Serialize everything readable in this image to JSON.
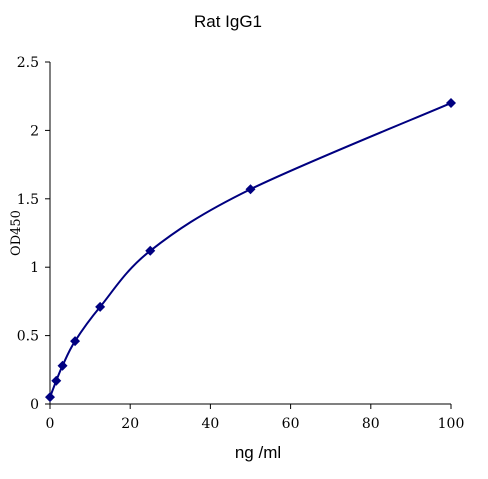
{
  "chart_data": {
    "type": "scatter",
    "title": "Rat   IgG1",
    "xlabel": "ng /ml",
    "ylabel": "OD450",
    "xlim": [
      0,
      100
    ],
    "ylim": [
      0,
      2.5
    ],
    "x_ticks": [
      "0",
      "20",
      "40",
      "60",
      "80",
      "100"
    ],
    "y_ticks": [
      "0",
      "0.5",
      "1",
      "1.5",
      "2",
      "2.5"
    ],
    "grid": false,
    "legend": "none",
    "marker": "diamond",
    "smooth_curve": true,
    "color": "#000080",
    "series": [
      {
        "x": [
          0,
          1.5625,
          3.125,
          6.25,
          12.5,
          25,
          50,
          100
        ],
        "y": [
          0.05,
          0.17,
          0.28,
          0.46,
          0.71,
          1.12,
          1.57,
          2.2
        ]
      }
    ]
  }
}
